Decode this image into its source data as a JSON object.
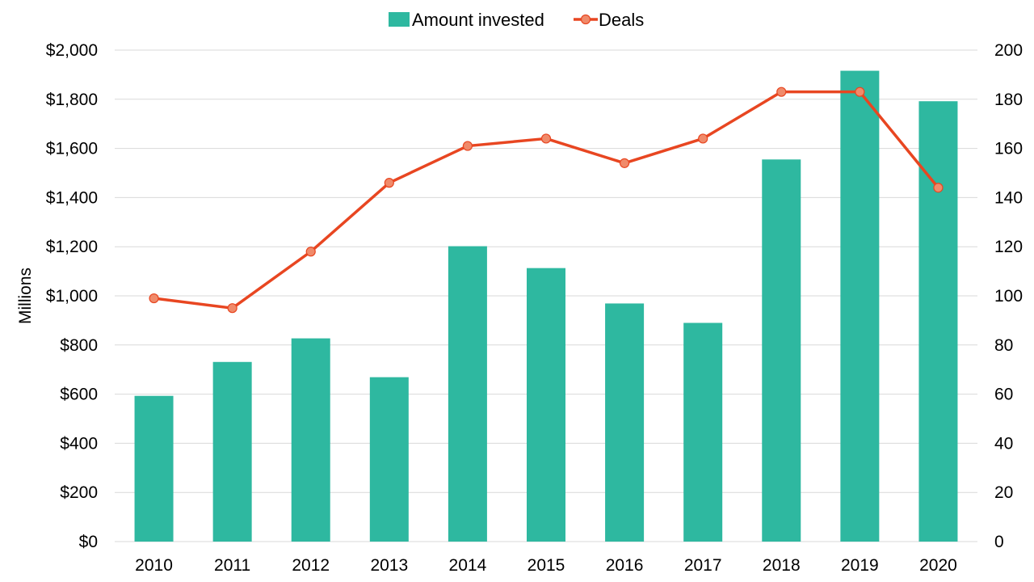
{
  "chart_data": {
    "type": "bar",
    "categories": [
      "2010",
      "2011",
      "2012",
      "2013",
      "2014",
      "2015",
      "2016",
      "2017",
      "2018",
      "2019",
      "2020"
    ],
    "series": [
      {
        "name": "Amount invested",
        "type": "bar",
        "axis": "left",
        "color": "#2eb8a0",
        "values": [
          593,
          731,
          827,
          669,
          1202,
          1113,
          969,
          890,
          1555,
          1916,
          1792
        ]
      },
      {
        "name": "Deals",
        "type": "line",
        "axis": "right",
        "color": "#e84621",
        "marker_color": "#f08a6a",
        "values": [
          99,
          95,
          118,
          146,
          161,
          164,
          154,
          164,
          183,
          183,
          144
        ]
      }
    ],
    "ylabel": "Millions",
    "ylim": [
      0,
      2000
    ],
    "y_ticks": [
      "$0",
      "$200",
      "$400",
      "$600",
      "$800",
      "$1,000",
      "$1,200",
      "$1,400",
      "$1,600",
      "$1,800",
      "$2,000"
    ],
    "y2lim": [
      0,
      200
    ],
    "y2_ticks": [
      "0",
      "20",
      "40",
      "60",
      "80",
      "100",
      "120",
      "140",
      "160",
      "180",
      "200"
    ],
    "grid": true,
    "legend": "top-center"
  }
}
